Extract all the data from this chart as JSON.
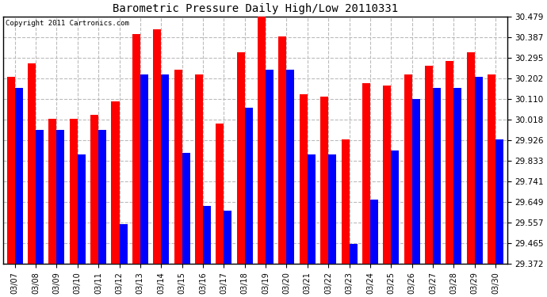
{
  "title": "Barometric Pressure Daily High/Low 20110331",
  "copyright": "Copyright 2011 Cartronics.com",
  "dates": [
    "03/07",
    "03/08",
    "03/09",
    "03/10",
    "03/11",
    "03/12",
    "03/13",
    "03/14",
    "03/15",
    "03/16",
    "03/17",
    "03/18",
    "03/19",
    "03/20",
    "03/21",
    "03/22",
    "03/23",
    "03/24",
    "03/25",
    "03/26",
    "03/27",
    "03/28",
    "03/29",
    "03/30"
  ],
  "highs": [
    30.21,
    30.27,
    30.02,
    30.02,
    30.04,
    30.1,
    30.4,
    30.42,
    30.24,
    30.22,
    30.0,
    30.32,
    30.49,
    30.39,
    30.13,
    30.12,
    29.93,
    30.18,
    30.17,
    30.22,
    30.26,
    30.28,
    30.32,
    30.22
  ],
  "lows": [
    30.16,
    29.97,
    29.97,
    29.86,
    29.97,
    29.55,
    30.22,
    30.22,
    29.87,
    29.63,
    29.61,
    30.07,
    30.24,
    30.24,
    29.86,
    29.86,
    29.46,
    29.66,
    29.88,
    30.11,
    30.16,
    30.16,
    30.21,
    29.93
  ],
  "bar_color_high": "#ff0000",
  "bar_color_low": "#0000ff",
  "background_color": "#ffffff",
  "grid_color": "#bbbbbb",
  "ymin": 29.372,
  "ymax": 30.479,
  "yticks": [
    29.372,
    29.465,
    29.557,
    29.649,
    29.741,
    29.833,
    29.926,
    30.018,
    30.11,
    30.202,
    30.295,
    30.387,
    30.479
  ]
}
